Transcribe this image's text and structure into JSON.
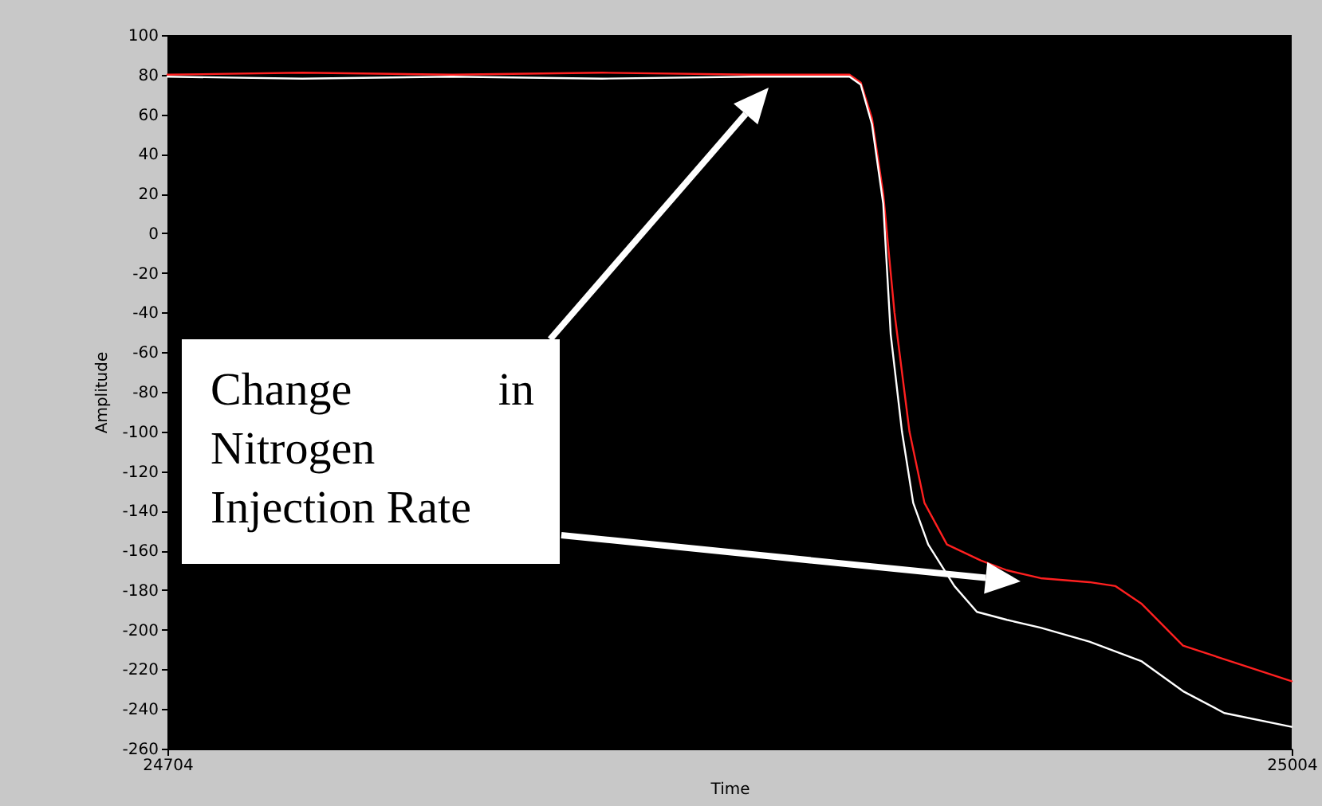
{
  "chart_data": {
    "type": "line",
    "xlabel": "Time",
    "ylabel": "Amplitude",
    "annotations": [
      "Change in Nitrogen Injection Rate"
    ],
    "xlim": [
      24704,
      25004
    ],
    "xticks": [
      24704,
      25004
    ],
    "ylim": [
      -260,
      100
    ],
    "yticks": [
      -260,
      -240,
      -220,
      -200,
      -180,
      -160,
      -140,
      -120,
      -100,
      -80,
      -60,
      -40,
      -20,
      0,
      20,
      40,
      60,
      80,
      100
    ],
    "grid": false,
    "line_style": "solid",
    "series": [
      {
        "color": "#ff2020",
        "x": [
          24704,
          24740,
          24780,
          24820,
          24860,
          24886,
          24889,
          24892,
          24895,
          24898,
          24902,
          24906,
          24912,
          24921,
          24928,
          24937,
          24950,
          24957,
          24964,
          24975,
          24991,
          25004
        ],
        "values": [
          80,
          81,
          80,
          81,
          80,
          80,
          76,
          58,
          20,
          -40,
          -100,
          -136,
          -157,
          -165,
          -170,
          -174,
          -176,
          -178,
          -187,
          -208,
          -218,
          -226
        ]
      },
      {
        "color": "#ffffff",
        "x": [
          24704,
          24740,
          24780,
          24820,
          24860,
          24886,
          24889,
          24892,
          24895,
          24897,
          24900,
          24903,
          24907,
          24914,
          24920,
          24928,
          24937,
          24950,
          24964,
          24975,
          24986,
          25004
        ],
        "values": [
          79,
          78,
          79,
          78,
          79,
          79,
          75,
          55,
          15,
          -51,
          -100,
          -136,
          -157,
          -178,
          -191,
          -195,
          -199,
          -206,
          -216,
          -231,
          -242,
          -249
        ]
      }
    ]
  }
}
